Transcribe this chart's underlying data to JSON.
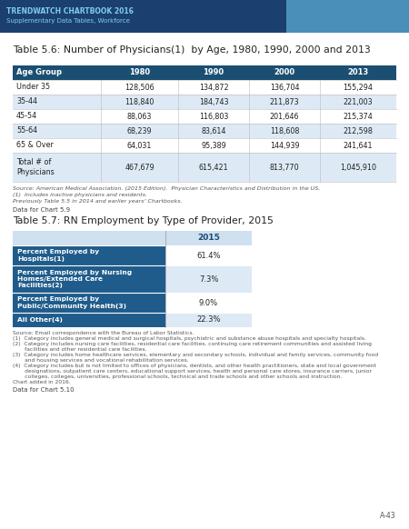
{
  "header_bg": "#1b4f72",
  "header_text_color": "#ffffff",
  "alt_row_bg": "#ddeaf5",
  "white_row_bg": "#ffffff",
  "dark_blue_cell": "#1f5c8b",
  "light_blue_header": "#cfe0f0",
  "banner_bg": "#1b4070",
  "banner_title": "TRENDWATCH CHARTBOOK 2016",
  "banner_subtitle": "Supplementary Data Tables, Workforce",
  "page_bg": "#ffffff",
  "table1_title": "Table 5.6: Number of Physicians(1)  by Age, 1980, 1990, 2000 and 2013",
  "table1_headers": [
    "Age Group",
    "1980",
    "1990",
    "2000",
    "2013"
  ],
  "table1_rows": [
    [
      "Under 35",
      "128,506",
      "134,872",
      "136,704",
      "155,294"
    ],
    [
      "35-44",
      "118,840",
      "184,743",
      "211,873",
      "221,003"
    ],
    [
      "45-54",
      "88,063",
      "116,803",
      "201,646",
      "215,374"
    ],
    [
      "55-64",
      "68,239",
      "83,614",
      "118,608",
      "212,598"
    ],
    [
      "65 & Over",
      "64,031",
      "95,389",
      "144,939",
      "241,641"
    ],
    [
      "Total # of\nPhysicians",
      "467,679",
      "615,421",
      "813,770",
      "1,045,910"
    ]
  ],
  "table1_source_line1": "Source: American Medical Association. (2015 Edition).  Physician Characteristics and Distribution in the US.",
  "table1_source_line2": "(1)  Includes inactive physicians and residents.",
  "table1_source_line3": "Previously Table 5.5 in 2014 and earlier years’ Chartbooks.",
  "table1_data_note": "Data for Chart 5.9",
  "table2_title": "Table 5.7: RN Employment by Type of Provider, 2015",
  "table2_col_header": "2015",
  "table2_rows": [
    [
      "Percent Employed by\nHospitals(1)",
      "61.4%"
    ],
    [
      "Percent Employed by Nursing\nHomes/Extended Care\nFacilities(2)",
      "7.3%"
    ],
    [
      "Percent Employed by\nPublic/Community Health(3)",
      "9.0%"
    ],
    [
      "All Other(4)",
      "22.3%"
    ]
  ],
  "table2_source_line1": "Source: Email correspondence with the Bureau of Labor Statistics.",
  "table2_source_line2": "(1)  Category includes general medical and surgical hospitals, psychiatric and substance abuse hospitals and specialty hospitals.",
  "table2_source_line3": "(2)  Category includes nursing care facilities, residential care facilities, continuing care retirement communities and assisted living",
  "table2_source_line3b": "       facilities and other residential care facilities.",
  "table2_source_line4": "(3)  Category includes home healthcare services, elementary and secondary schools, individual and family services, community food",
  "table2_source_line4b": "       and housing services and vocational rehabilitation services.",
  "table2_source_line5": "(4)  Category includes but is not limited to offices of physicians, dentists, and other health practitioners, state and local government",
  "table2_source_line5b": "       designations, outpatient care centers, educational support services, health and personal care stores, insurance carriers, junior",
  "table2_source_line5c": "       colleges, colleges, universities, professional schools, technical and trade schools and other schools and instruction.",
  "table2_source_line6": "Chart added in 2016.",
  "table2_data_note": "Data for Chart 5.10",
  "page_number": "A-43"
}
